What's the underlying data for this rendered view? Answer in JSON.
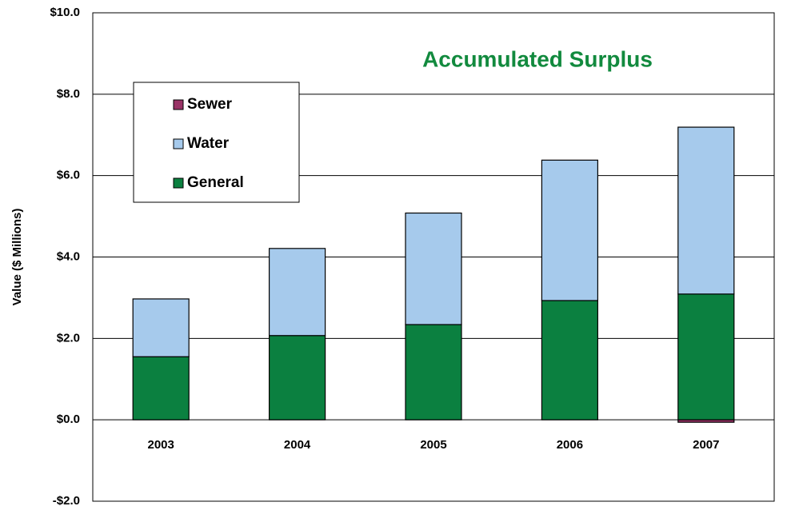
{
  "chart_data": {
    "type": "stacked_bar",
    "title": "Accumulated Surplus",
    "title_color": "#128a3e",
    "y_label": "Value ($ Millions)",
    "categories": [
      "2003",
      "2004",
      "2005",
      "2006",
      "2007"
    ],
    "series": [
      {
        "name": "Sewer",
        "color": "#993366",
        "values": [
          0,
          0,
          0,
          0,
          -0.06
        ]
      },
      {
        "name": "Water",
        "color": "#a6caec",
        "values": [
          1.42,
          2.14,
          2.74,
          3.45,
          4.1
        ]
      },
      {
        "name": "General",
        "color": "#0b8040",
        "values": [
          1.55,
          2.07,
          2.34,
          2.93,
          3.09
        ]
      }
    ],
    "ylim": [
      -2,
      10
    ],
    "yticks": [
      {
        "value": -2,
        "label": "-$2.0"
      },
      {
        "value": 0,
        "label": "$0.0"
      },
      {
        "value": 2,
        "label": "$2.0"
      },
      {
        "value": 4,
        "label": "$4.0"
      },
      {
        "value": 6,
        "label": "$6.0"
      },
      {
        "value": 8,
        "label": "$8.0"
      },
      {
        "value": 10,
        "label": "$10.0"
      }
    ],
    "grid": true,
    "legend": "upper left"
  }
}
